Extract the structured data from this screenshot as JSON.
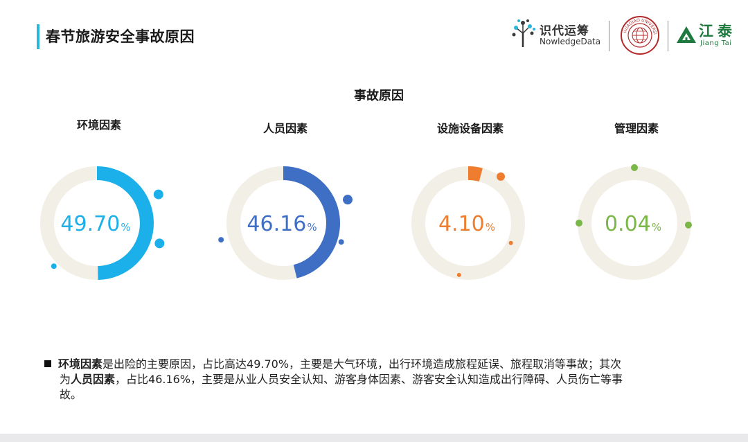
{
  "header": {
    "title": "春节旅游安全事故原因",
    "logos": {
      "zhida_cn": "识代运筹",
      "zhida_en": "NowledgeData",
      "univ_text": "HUAQIAO UNIVERSITY",
      "jt_cn": "江泰",
      "jt_en": "Jiang Tai"
    }
  },
  "colors": {
    "ring_bg": "#f2efe6",
    "env": "#1cb0ea",
    "staff": "#3e6fc4",
    "facility": "#ee7d2f",
    "mgmt": "#7ab648",
    "accent_bar": "#2bb6d9"
  },
  "chart_data": {
    "type": "pie",
    "title": "事故原因",
    "categories": [
      "环境因素",
      "人员因素",
      "设施设备因素",
      "管理因素"
    ],
    "values": [
      49.7,
      46.16,
      4.1,
      0.04
    ],
    "unit": "%",
    "value_labels": [
      "49.70",
      "46.16",
      "4.10",
      "0.04"
    ]
  },
  "footnote": {
    "line1_b": "环境因素",
    "line1_rest": "是出险的主要原因，占比高达49.70%，主要是大气环境，出行环境造成旅程延误、旅程取消等事故；其次",
    "line2_pre": "为",
    "line2_b": "人员因素",
    "line2_rest": "，占比46.16%，主要是从业人员安全认知、游客身体因素、游客安全认知造成出行障碍、人员伤亡等事",
    "line3": "故。"
  }
}
